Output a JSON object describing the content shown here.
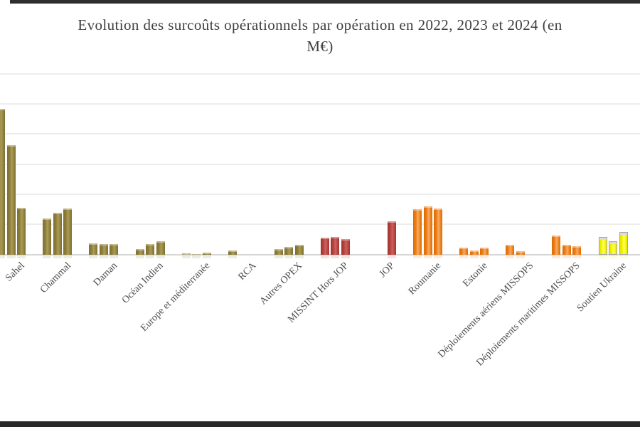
{
  "header": {
    "title_lines": [
      "Evolution des surcoûts opérationnels par opération en 2022, 2023 et 2024 (en",
      "M€)"
    ]
  },
  "chart_data": {
    "type": "bar",
    "title": "Evolution des surcoûts opérationnels par opération en 2022, 2023 et 2024 (en M€)",
    "unit": "M€",
    "xlabel": "",
    "ylabel": "",
    "ylim": [
      0,
      600
    ],
    "gridline_step": 100,
    "grid": true,
    "legend": "none",
    "categories": [
      "Sahel",
      "Chammal",
      "Daman",
      "Océan Indien",
      "Europe et méditerranée",
      "RCA",
      "Autres OPEX",
      "MISSINT Hors JOP",
      "JOP",
      "Roumanie",
      "Estonie",
      "Déploiements aériens MISSOPS",
      "Déploiements maritimes MISSOPS",
      "Soutien Ukraine"
    ],
    "series": [
      {
        "name": "2022",
        "values": [
          485,
          120,
          38,
          20,
          5,
          15,
          20,
          56,
          0,
          152,
          24,
          33,
          63,
          60
        ]
      },
      {
        "name": "2023",
        "values": [
          365,
          140,
          36,
          35,
          2,
          0,
          25,
          59,
          0,
          160,
          14,
          12,
          33,
          45
        ]
      },
      {
        "name": "2024",
        "values": [
          155,
          153,
          35,
          45,
          7,
          0,
          33,
          52,
          110,
          153,
          24,
          0,
          28,
          75
        ]
      }
    ],
    "category_colors": [
      "olive",
      "olive",
      "olive",
      "olive",
      "olive",
      "olive",
      "olive",
      "red",
      "red",
      "orange",
      "orange",
      "orange",
      "orange",
      "yellow"
    ],
    "palette": {
      "olive": {
        "fill": "#8b7d3b",
        "light": "#ac9c55",
        "dark": "#7d7034"
      },
      "red": {
        "fill": "#b5413e",
        "light": "#c9625e",
        "dark": "#a33330"
      },
      "orange": {
        "fill": "#ec7b12",
        "light": "#f6ab66",
        "dark": "#dd6c04"
      },
      "yellow": {
        "fill": "#f4f402",
        "light": "#ffff5e",
        "dark": "#e0e000",
        "border": "#a6a6a6",
        "cap": "#dcdcdc"
      }
    }
  }
}
